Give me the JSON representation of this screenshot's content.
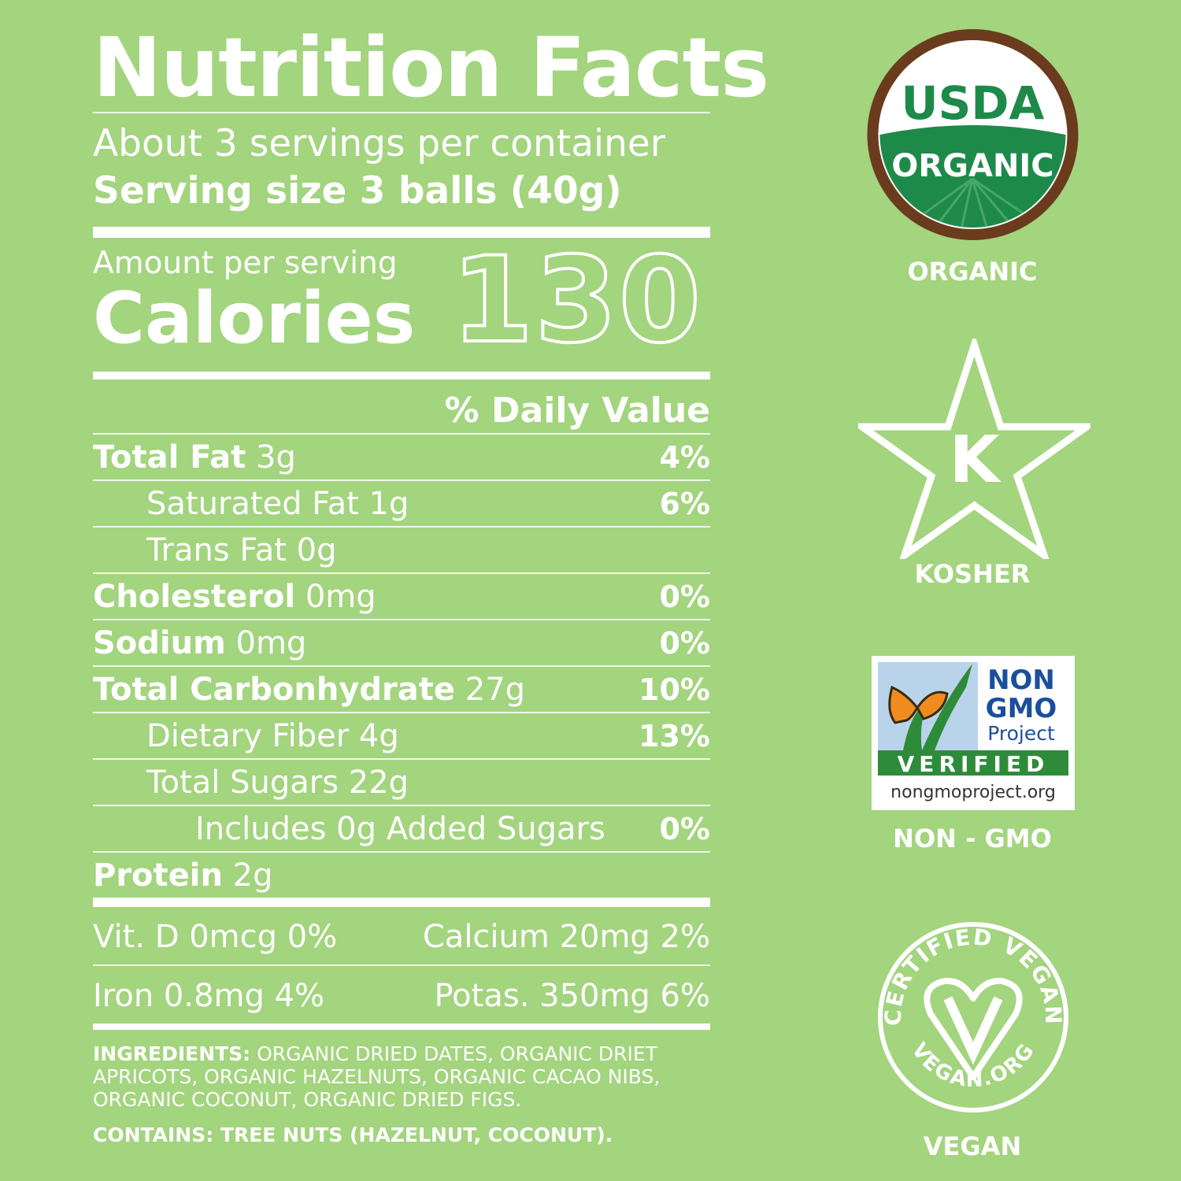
{
  "label": {
    "title": "Nutrition Facts",
    "servings": "About 3 servings per container",
    "serving_size": "Serving size 3 balls (40g)",
    "amount_per_serving": "Amount per serving",
    "calories_label": "Calories",
    "calories_value": "130",
    "daily_value_header": "% Daily Value",
    "rows": [
      {
        "name": "Total Fat",
        "amount": " 3g",
        "pct": "4%"
      },
      {
        "name": "Saturated Fat 1g",
        "pct": "6%"
      },
      {
        "name": "Trans Fat 0g",
        "pct": ""
      },
      {
        "name": "Cholesterol",
        "amount": " 0mg",
        "pct": "0%"
      },
      {
        "name": "Sodium",
        "amount": " 0mg",
        "pct": "0%"
      },
      {
        "name": "Total Carbonhydrate",
        "amount": " 27g",
        "pct": "10%"
      },
      {
        "name": "Dietary Fiber 4g",
        "pct": "13%"
      },
      {
        "name": "Total Sugars 22g",
        "pct": ""
      },
      {
        "name": "Includes 0g Added Sugars",
        "pct": "0%"
      },
      {
        "name": "Protein",
        "amount": " 2g",
        "pct": ""
      }
    ],
    "vitamins": {
      "vit_d": "Vit. D 0mcg 0%",
      "calcium": "Calcium 20mg 2%",
      "iron": "Iron 0.8mg 4%",
      "potassium": "Potas. 350mg 6%"
    },
    "ingredients_label": "INGREDIENTS:",
    "ingredients_text": " ORGANIC DRIED DATES, ORGANIC DRIET APRICOTS, ORGANIC HAZELNUTS, ORGANIC CACAO NIBS, ORGANIC COCONUT, ORGANIC DRIED FIGS.",
    "contains": "CONTAINS: TREE NUTS (HAZELNUT, COCONUT)."
  },
  "badges": {
    "usda": {
      "top": "USDA",
      "bottom": "ORGANIC",
      "label": "ORGANIC"
    },
    "kosher": {
      "letter": "K",
      "label": "KOSHER"
    },
    "non_gmo": {
      "line1": "NON",
      "line2": "GMO",
      "line3": "Project",
      "verified": "VERIFIED",
      "url": "nongmoproject.org",
      "label": "NON - GMO"
    },
    "vegan": {
      "ring_text": "CERTIFIED VEGAN",
      "bottom_text": "VEGAN.ORG",
      "label": "VEGAN"
    }
  },
  "colors": {
    "background": "#a3d47e",
    "usda_green": "#1e8a4a",
    "usda_brown": "#6b3b1e",
    "gmo_blue": "#1a4f9c",
    "gmo_green": "#2e8b3a",
    "butterfly_orange": "#f08c1e"
  }
}
